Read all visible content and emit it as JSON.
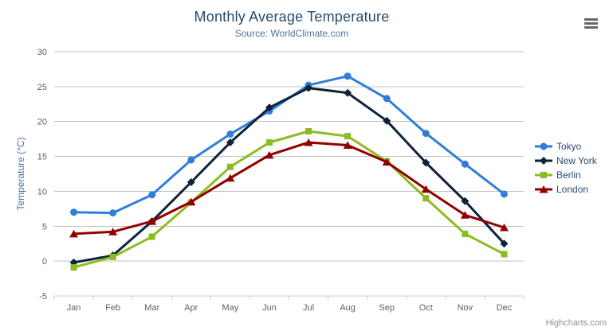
{
  "credits": "Highcharts.com",
  "chart_data": {
    "type": "line",
    "title": "Monthly Average Temperature",
    "subtitle": "Source: WorldClimate.com",
    "categories": [
      "Jan",
      "Feb",
      "Mar",
      "Apr",
      "May",
      "Jun",
      "Jul",
      "Aug",
      "Sep",
      "Oct",
      "Nov",
      "Dec"
    ],
    "xlabel": "",
    "ylabel": "Temperature (°C)",
    "ylim": [
      -5,
      30
    ],
    "yticks": [
      -5,
      0,
      5,
      10,
      15,
      20,
      25,
      30
    ],
    "grid": true,
    "legend_position": "right",
    "series": [
      {
        "name": "Tokyo",
        "color": "#2f7ed8",
        "marker": "circle",
        "values": [
          7.0,
          6.9,
          9.5,
          14.5,
          18.2,
          21.5,
          25.2,
          26.5,
          23.3,
          18.3,
          13.9,
          9.6
        ]
      },
      {
        "name": "New York",
        "color": "#0d233a",
        "marker": "diamond",
        "values": [
          -0.2,
          0.8,
          5.7,
          11.3,
          17.0,
          22.0,
          24.8,
          24.1,
          20.1,
          14.1,
          8.6,
          2.5
        ]
      },
      {
        "name": "Berlin",
        "color": "#8bbc21",
        "marker": "square",
        "values": [
          -0.9,
          0.6,
          3.5,
          8.4,
          13.5,
          17.0,
          18.6,
          17.9,
          14.3,
          9.0,
          3.9,
          1.0
        ]
      },
      {
        "name": "London",
        "color": "#910000",
        "marker": "triangle",
        "values": [
          3.9,
          4.2,
          5.7,
          8.5,
          11.9,
          15.2,
          17.0,
          16.6,
          14.2,
          10.3,
          6.6,
          4.8
        ]
      }
    ],
    "colors": {
      "title": "#274b6d",
      "subtitle": "#4d759e",
      "axis_label": "#606060",
      "axis_title": "#4572a7",
      "gridline": "#c0c0c0",
      "axis_line": "#c0d0e0",
      "legend_text": "#274b6d",
      "credits": "#909090"
    }
  }
}
